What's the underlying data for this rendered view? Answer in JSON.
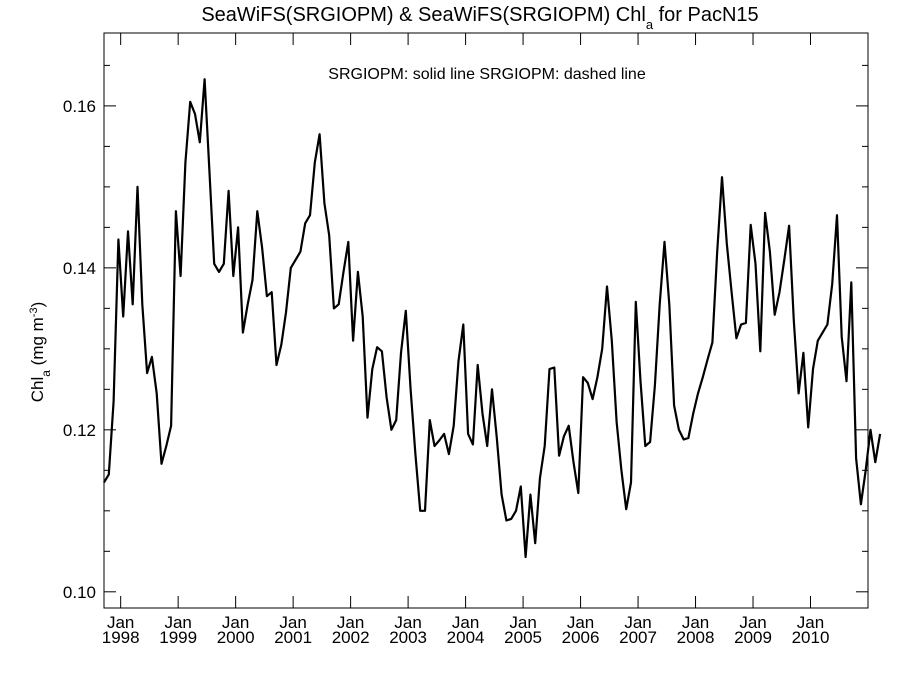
{
  "chart_data": {
    "type": "line",
    "title": {
      "main": "SeaWiFS(SRGIOPM) & SeaWiFS(SRGIOPM)  Chl",
      "sub": "a",
      "tail": " for PacN15"
    },
    "legend_text": "SRGIOPM: solid line   SRGIOPM: dashed line",
    "ylabel": {
      "main": "Chl",
      "sub": "a",
      "unit": " (mg m",
      "sup": "-3",
      "close": ")"
    },
    "ylim": [
      0.098,
      0.169
    ],
    "yticks": [
      0.1,
      0.12,
      0.14,
      0.16
    ],
    "ytick_labels": [
      "0.10",
      "0.12",
      "0.14",
      "0.16"
    ],
    "xlim": [
      1997.71,
      2011.0
    ],
    "xticks": [
      {
        "value": 1998.0,
        "month": "Jan",
        "year": "1998"
      },
      {
        "value": 1999.0,
        "month": "Jan",
        "year": "1999"
      },
      {
        "value": 2000.0,
        "month": "Jan",
        "year": "2000"
      },
      {
        "value": 2001.0,
        "month": "Jan",
        "year": "2001"
      },
      {
        "value": 2002.0,
        "month": "Jan",
        "year": "2002"
      },
      {
        "value": 2003.0,
        "month": "Jan",
        "year": "2003"
      },
      {
        "value": 2004.0,
        "month": "Jan",
        "year": "2004"
      },
      {
        "value": 2005.0,
        "month": "Jan",
        "year": "2005"
      },
      {
        "value": 2006.0,
        "month": "Jan",
        "year": "2006"
      },
      {
        "value": 2007.0,
        "month": "Jan",
        "year": "2007"
      },
      {
        "value": 2008.0,
        "month": "Jan",
        "year": "2008"
      },
      {
        "value": 2009.0,
        "month": "Jan",
        "year": "2009"
      },
      {
        "value": 2010.0,
        "month": "Jan",
        "year": "2010"
      }
    ],
    "grid": false,
    "series": [
      {
        "style": "solid",
        "x_start": 1997.71,
        "x_step": 0.0833333,
        "values": [
          0.1135,
          0.1145,
          0.1235,
          0.1435,
          0.134,
          0.1445,
          0.1355,
          0.15,
          0.1355,
          0.127,
          0.129,
          0.1245,
          0.1158,
          0.118,
          0.1205,
          0.147,
          0.139,
          0.153,
          0.1605,
          0.159,
          0.1555,
          0.1633,
          0.152,
          0.1405,
          0.1395,
          0.1405,
          0.1495,
          0.139,
          0.145,
          0.132,
          0.1355,
          0.1385,
          0.147,
          0.1425,
          0.1365,
          0.137,
          0.128,
          0.1305,
          0.1345,
          0.14,
          0.141,
          0.142,
          0.1455,
          0.1465,
          0.153,
          0.1565,
          0.148,
          0.144,
          0.135,
          0.1355,
          0.1395,
          0.1432,
          0.131,
          0.1395,
          0.134,
          0.1215,
          0.1275,
          0.1302,
          0.1297,
          0.124,
          0.12,
          0.1212,
          0.1295,
          0.1347,
          0.125,
          0.117,
          0.11,
          0.11,
          0.1212,
          0.118,
          0.1187,
          0.1195,
          0.117,
          0.1205,
          0.1285,
          0.133,
          0.1195,
          0.1182,
          0.128,
          0.122,
          0.118,
          0.125,
          0.119,
          0.112,
          0.1088,
          0.109,
          0.11,
          0.113,
          0.1043,
          0.112,
          0.106,
          0.114,
          0.118,
          0.1275,
          0.1277,
          0.1168,
          0.1192,
          0.1205,
          0.116,
          0.1122,
          0.1265,
          0.1258,
          0.1238,
          0.1265,
          0.13,
          0.1377,
          0.131,
          0.121,
          0.115,
          0.1102,
          0.1135,
          0.1358,
          0.126,
          0.118,
          0.1185,
          0.1255,
          0.1355,
          0.1432,
          0.1355,
          0.123,
          0.12,
          0.1188,
          0.119,
          0.122,
          0.1245,
          0.1265,
          0.1287,
          0.1308,
          0.142,
          0.1512,
          0.143,
          0.137,
          0.1313,
          0.133,
          0.1332,
          0.1453,
          0.1405,
          0.1297,
          0.1468,
          0.142,
          0.1342,
          0.137,
          0.141,
          0.1452,
          0.1335,
          0.1245,
          0.1295,
          0.1203,
          0.1275,
          0.131,
          0.132,
          0.133,
          0.138,
          0.1465,
          0.1315,
          0.126,
          0.1382,
          0.1165,
          0.1108,
          0.115,
          0.12,
          0.116,
          0.1195
        ]
      }
    ]
  }
}
